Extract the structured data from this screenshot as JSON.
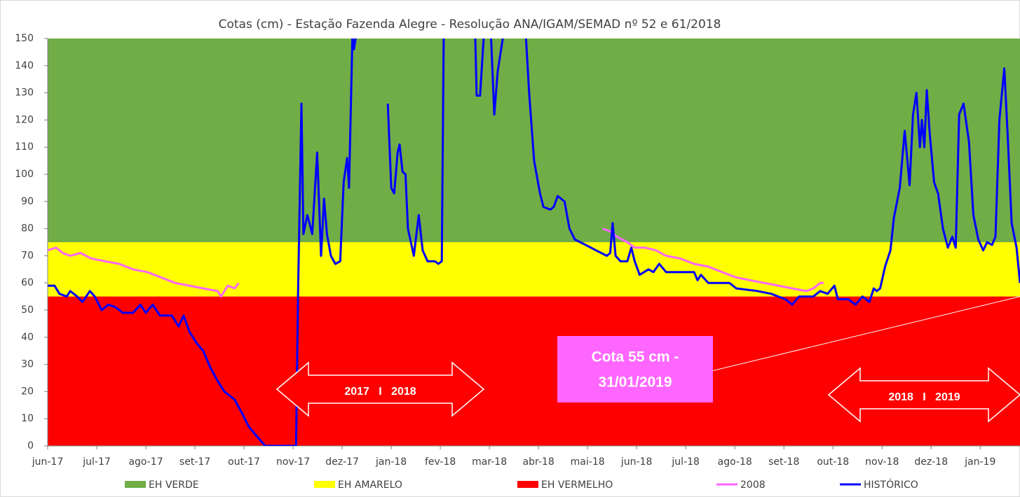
{
  "chart_data": {
    "type": "line",
    "title": "Cotas (cm) - Estação Fazenda Alegre - Resolução ANA/IGAM/SEMAD nº 52 e 61/2018",
    "xlim": [
      0,
      19.81
    ],
    "xticks": [
      {
        "value": 0,
        "label": "jun-17"
      },
      {
        "value": 1,
        "label": "jul-17"
      },
      {
        "value": 2,
        "label": "ago-17"
      },
      {
        "value": 3,
        "label": "set-17"
      },
      {
        "value": 4,
        "label": "out-17"
      },
      {
        "value": 5,
        "label": "nov-17"
      },
      {
        "value": 6,
        "label": "dez-17"
      },
      {
        "value": 7,
        "label": "jan-18"
      },
      {
        "value": 8,
        "label": "fev-18"
      },
      {
        "value": 9,
        "label": "mar-18"
      },
      {
        "value": 10,
        "label": "abr-18"
      },
      {
        "value": 11,
        "label": "mai-18"
      },
      {
        "value": 12,
        "label": "jun-18"
      },
      {
        "value": 13,
        "label": "jul-18"
      },
      {
        "value": 14,
        "label": "ago-18"
      },
      {
        "value": 15,
        "label": "set-18"
      },
      {
        "value": 16,
        "label": "out-18"
      },
      {
        "value": 17,
        "label": "nov-18"
      },
      {
        "value": 18,
        "label": "dez-18"
      },
      {
        "value": 19,
        "label": "jan-19"
      }
    ],
    "ylim": [
      0,
      150
    ],
    "yticks": [
      0,
      10,
      20,
      30,
      40,
      50,
      60,
      70,
      80,
      90,
      100,
      110,
      120,
      130,
      140,
      150
    ],
    "bands": [
      {
        "name": "EH VERDE",
        "color": "#70ad47",
        "range": [
          75,
          150
        ]
      },
      {
        "name": "EH AMARELO",
        "color": "#ffff00",
        "range": [
          55,
          75
        ]
      },
      {
        "name": "EH VERMELHO",
        "color": "#ff0000",
        "range": [
          0,
          55
        ]
      }
    ],
    "series": [
      {
        "name": "2008",
        "color": "#ff66ff",
        "x": [
          0,
          0.17,
          0.31,
          0.46,
          0.67,
          0.89,
          1.17,
          1.46,
          1.74,
          2.03,
          2.31,
          2.6,
          2.89,
          3.17,
          3.46,
          3.53,
          3.67,
          3.81,
          3.89,
          7.5,
          11.31,
          11.46,
          11.6,
          11.81,
          11.96,
          12.17,
          12.39,
          12.6,
          12.89,
          13.17,
          13.46,
          13.74,
          14.03,
          14.31,
          14.6,
          14.89,
          15.17,
          15.46,
          15.6,
          15.74,
          15.81
        ],
        "values": [
          72,
          73,
          71,
          70,
          71,
          69,
          68,
          67,
          65,
          64,
          62,
          60,
          59,
          58,
          57,
          55,
          59,
          58,
          60,
          null,
          80,
          79,
          77,
          75,
          73,
          73,
          72,
          70,
          69,
          67,
          66,
          64,
          62,
          61,
          60,
          59,
          58,
          57,
          58,
          60,
          60
        ]
      },
      {
        "name": "HISTÓRICO",
        "color": "#0000ff",
        "x": [
          0,
          0.14,
          0.24,
          0.39,
          0.46,
          0.6,
          0.71,
          0.86,
          0.96,
          1.1,
          1.24,
          1.39,
          1.53,
          1.74,
          1.89,
          2,
          2.14,
          2.29,
          2.53,
          2.67,
          2.77,
          2.89,
          3.03,
          3.17,
          3.31,
          3.46,
          3.6,
          3.81,
          3.96,
          4.1,
          4.24,
          4.43,
          5.06,
          5.1,
          5.17,
          5.21,
          5.29,
          5.39,
          5.49,
          5.57,
          5.63,
          5.69,
          5.77,
          5.86,
          5.96,
          6.03,
          6.1,
          6.14,
          6.21,
          6.24,
          6.29,
          6.6,
          6.93,
          7,
          7.06,
          7.13,
          7.17,
          7.23,
          7.29,
          7.34,
          7.46,
          7.56,
          7.64,
          7.74,
          7.89,
          7.96,
          8.03,
          8.07,
          8.4,
          8.71,
          8.74,
          8.81,
          8.89,
          9.03,
          9.1,
          9.17,
          9.29,
          9.5,
          9.74,
          9.81,
          9.91,
          10.03,
          10.1,
          10.24,
          10.31,
          10.39,
          10.46,
          10.53,
          10.63,
          10.74,
          10.96,
          11.17,
          11.39,
          11.46,
          11.51,
          11.57,
          11.67,
          11.81,
          11.89,
          11.96,
          12.06,
          12.24,
          12.34,
          12.46,
          12.6,
          13.17,
          13.24,
          13.31,
          13.46,
          13.89,
          14.03,
          14.46,
          14.74,
          15.03,
          15.17,
          15.31,
          15.6,
          15.74,
          15.89,
          16.03,
          16.1,
          16.31,
          16.46,
          16.6,
          16.74,
          16.83,
          16.89,
          16.96,
          17.06,
          17.17,
          17.24,
          17.36,
          17.46,
          17.56,
          17.63,
          17.7,
          17.77,
          17.81,
          17.86,
          17.91,
          17.97,
          18.06,
          18.14,
          18.24,
          18.34,
          18.43,
          18.5,
          18.57,
          18.66,
          18.77,
          18.86,
          18.96,
          19.06,
          19.14,
          19.24,
          19.31,
          19.39,
          19.49,
          19.56,
          19.64,
          19.74,
          19.81
        ],
        "values": [
          59,
          59,
          56,
          55,
          57,
          55,
          53,
          57,
          55,
          50,
          52,
          51,
          49,
          49,
          52,
          49,
          52,
          48,
          48,
          44,
          48,
          42,
          38,
          35,
          29,
          24,
          20,
          17,
          12,
          7,
          4,
          0,
          0,
          55,
          126,
          78,
          85,
          78,
          108,
          70,
          91,
          78,
          70,
          67,
          68,
          97,
          106,
          95,
          152,
          146,
          152,
          null,
          126,
          95,
          93,
          108,
          111,
          101,
          100,
          80,
          70,
          85,
          72,
          68,
          68,
          67,
          68,
          152,
          null,
          152,
          129,
          129,
          152,
          152,
          122,
          138,
          152,
          null,
          152,
          130,
          105,
          93,
          88,
          87,
          88,
          92,
          91,
          90,
          80,
          76,
          74,
          72,
          70,
          71,
          82,
          70,
          68,
          68,
          73,
          68,
          63,
          65,
          64,
          67,
          64,
          64,
          61,
          63,
          60,
          60,
          58,
          57,
          56,
          54,
          52,
          55,
          55,
          57,
          56,
          59,
          54,
          54,
          52,
          55,
          53,
          58,
          57,
          58,
          66,
          72,
          84,
          95,
          116,
          96,
          122,
          130,
          110,
          120,
          110,
          131,
          115,
          97,
          93,
          80,
          73,
          77,
          73,
          122,
          126,
          112,
          85,
          76,
          72,
          75,
          74,
          77,
          120,
          139,
          114,
          82,
          73,
          60
        ]
      }
    ],
    "annotations": [
      {
        "text": "2017   I   2018"
      },
      {
        "text": "2018   I   2019"
      },
      {
        "text": [
          "Cota 55 cm -",
          "31/01/2019"
        ]
      }
    ]
  }
}
